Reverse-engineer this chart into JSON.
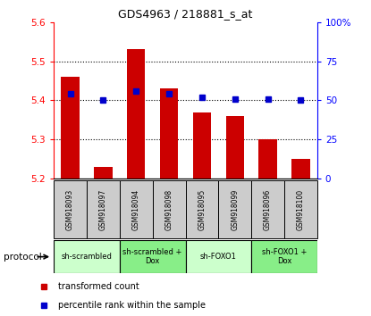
{
  "title": "GDS4963 / 218881_s_at",
  "samples": [
    "GSM918093",
    "GSM918097",
    "GSM918094",
    "GSM918098",
    "GSM918095",
    "GSM918099",
    "GSM918096",
    "GSM918100"
  ],
  "bar_values": [
    5.46,
    5.23,
    5.53,
    5.43,
    5.37,
    5.36,
    5.3,
    5.25
  ],
  "bar_base": 5.2,
  "percentile_values": [
    54,
    50,
    56,
    54,
    52,
    51,
    51,
    50
  ],
  "ylim": [
    5.2,
    5.6
  ],
  "y2lim": [
    0,
    100
  ],
  "yticks": [
    5.2,
    5.3,
    5.4,
    5.5,
    5.6
  ],
  "y2ticks": [
    0,
    25,
    50,
    75,
    100
  ],
  "y2ticklabels": [
    "0",
    "25",
    "50",
    "75",
    "100%"
  ],
  "bar_color": "#cc0000",
  "percentile_color": "#0000cc",
  "protocol_groups": [
    {
      "label": "sh-scrambled",
      "start": 0,
      "end": 2,
      "color": "#ccffcc"
    },
    {
      "label": "sh-scrambled +\nDox",
      "start": 2,
      "end": 4,
      "color": "#88ee88"
    },
    {
      "label": "sh-FOXO1",
      "start": 4,
      "end": 6,
      "color": "#ccffcc"
    },
    {
      "label": "sh-FOXO1 +\nDox",
      "start": 6,
      "end": 8,
      "color": "#88ee88"
    }
  ],
  "legend_bar_label": "transformed count",
  "legend_pct_label": "percentile rank within the sample",
  "protocol_label": "protocol",
  "bar_width": 0.55,
  "label_box_color": "#cccccc"
}
